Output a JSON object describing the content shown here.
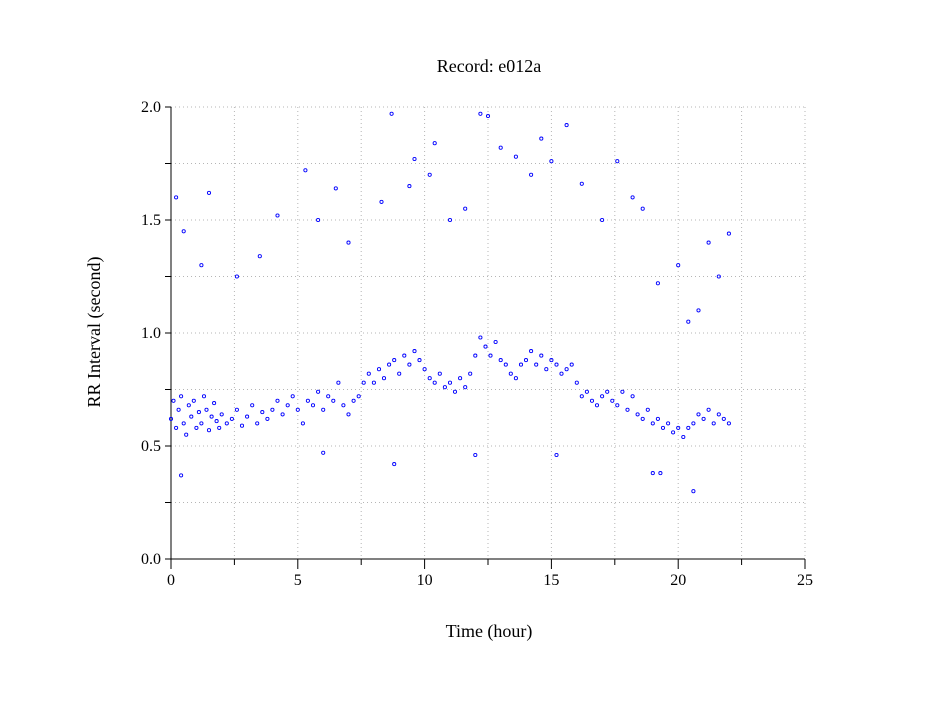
{
  "chart_data": {
    "type": "scatter",
    "title": "Record:  e012a",
    "xlabel": "Time (hour)",
    "ylabel": "RR Interval (second)",
    "xlim": [
      0,
      25
    ],
    "ylim": [
      0.0,
      2.0
    ],
    "x_ticks": [
      0,
      5,
      10,
      15,
      20,
      25
    ],
    "x_tick_labels": [
      "0",
      "5",
      "10",
      "15",
      "20",
      "25"
    ],
    "y_ticks": [
      0.0,
      0.5,
      1.0,
      1.5,
      2.0
    ],
    "y_tick_labels": [
      "0.0",
      "0.5",
      "1.0",
      "1.5",
      "2.0"
    ],
    "grid": true,
    "marker": "open-circle",
    "color": "#0000ff",
    "series": [
      {
        "values": [
          [
            0.0,
            0.62
          ],
          [
            0.1,
            0.7
          ],
          [
            0.2,
            0.58
          ],
          [
            0.3,
            0.66
          ],
          [
            0.4,
            0.72
          ],
          [
            0.5,
            0.6
          ],
          [
            0.6,
            0.55
          ],
          [
            0.7,
            0.68
          ],
          [
            0.8,
            0.63
          ],
          [
            0.9,
            0.7
          ],
          [
            1.0,
            0.58
          ],
          [
            1.1,
            0.65
          ],
          [
            1.2,
            0.6
          ],
          [
            1.3,
            0.72
          ],
          [
            1.4,
            0.66
          ],
          [
            1.5,
            0.57
          ],
          [
            1.6,
            0.63
          ],
          [
            1.7,
            0.69
          ],
          [
            1.8,
            0.61
          ],
          [
            1.9,
            0.58
          ],
          [
            2.0,
            0.64
          ],
          [
            2.2,
            0.6
          ],
          [
            2.4,
            0.62
          ],
          [
            2.6,
            0.66
          ],
          [
            2.8,
            0.59
          ],
          [
            3.0,
            0.63
          ],
          [
            3.2,
            0.68
          ],
          [
            3.4,
            0.6
          ],
          [
            3.6,
            0.65
          ],
          [
            3.8,
            0.62
          ],
          [
            4.0,
            0.66
          ],
          [
            4.2,
            0.7
          ],
          [
            4.4,
            0.64
          ],
          [
            4.6,
            0.68
          ],
          [
            4.8,
            0.72
          ],
          [
            5.0,
            0.66
          ],
          [
            5.2,
            0.6
          ],
          [
            5.4,
            0.7
          ],
          [
            5.6,
            0.68
          ],
          [
            5.8,
            0.74
          ],
          [
            6.0,
            0.66
          ],
          [
            6.2,
            0.72
          ],
          [
            6.4,
            0.7
          ],
          [
            6.6,
            0.78
          ],
          [
            6.8,
            0.68
          ],
          [
            7.0,
            0.64
          ],
          [
            7.2,
            0.7
          ],
          [
            7.4,
            0.72
          ],
          [
            7.6,
            0.78
          ],
          [
            7.8,
            0.82
          ],
          [
            8.0,
            0.78
          ],
          [
            8.2,
            0.84
          ],
          [
            8.4,
            0.8
          ],
          [
            8.6,
            0.86
          ],
          [
            8.8,
            0.88
          ],
          [
            9.0,
            0.82
          ],
          [
            9.2,
            0.9
          ],
          [
            9.4,
            0.86
          ],
          [
            9.6,
            0.92
          ],
          [
            9.8,
            0.88
          ],
          [
            10.0,
            0.84
          ],
          [
            10.2,
            0.8
          ],
          [
            10.4,
            0.78
          ],
          [
            10.6,
            0.82
          ],
          [
            10.8,
            0.76
          ],
          [
            11.0,
            0.78
          ],
          [
            11.2,
            0.74
          ],
          [
            11.4,
            0.8
          ],
          [
            11.6,
            0.76
          ],
          [
            11.8,
            0.82
          ],
          [
            12.0,
            0.9
          ],
          [
            12.2,
            0.98
          ],
          [
            12.4,
            0.94
          ],
          [
            12.6,
            0.9
          ],
          [
            12.8,
            0.96
          ],
          [
            13.0,
            0.88
          ],
          [
            13.2,
            0.86
          ],
          [
            13.4,
            0.82
          ],
          [
            13.6,
            0.8
          ],
          [
            13.8,
            0.86
          ],
          [
            14.0,
            0.88
          ],
          [
            14.2,
            0.92
          ],
          [
            14.4,
            0.86
          ],
          [
            14.6,
            0.9
          ],
          [
            14.8,
            0.84
          ],
          [
            15.0,
            0.88
          ],
          [
            15.2,
            0.86
          ],
          [
            15.4,
            0.82
          ],
          [
            15.6,
            0.84
          ],
          [
            15.8,
            0.86
          ],
          [
            16.0,
            0.78
          ],
          [
            16.2,
            0.72
          ],
          [
            16.4,
            0.74
          ],
          [
            16.6,
            0.7
          ],
          [
            16.8,
            0.68
          ],
          [
            17.0,
            0.72
          ],
          [
            17.2,
            0.74
          ],
          [
            17.4,
            0.7
          ],
          [
            17.6,
            0.68
          ],
          [
            17.8,
            0.74
          ],
          [
            18.0,
            0.66
          ],
          [
            18.2,
            0.72
          ],
          [
            18.4,
            0.64
          ],
          [
            18.6,
            0.62
          ],
          [
            18.8,
            0.66
          ],
          [
            19.0,
            0.6
          ],
          [
            19.2,
            0.62
          ],
          [
            19.4,
            0.58
          ],
          [
            19.6,
            0.6
          ],
          [
            19.8,
            0.56
          ],
          [
            20.0,
            0.58
          ],
          [
            20.2,
            0.54
          ],
          [
            20.4,
            0.58
          ],
          [
            20.6,
            0.6
          ],
          [
            20.8,
            0.64
          ],
          [
            21.0,
            0.62
          ],
          [
            21.2,
            0.66
          ],
          [
            21.4,
            0.6
          ],
          [
            21.6,
            0.64
          ],
          [
            21.8,
            0.62
          ],
          [
            22.0,
            0.6
          ],
          [
            0.2,
            1.6
          ],
          [
            0.5,
            1.45
          ],
          [
            1.2,
            1.3
          ],
          [
            1.5,
            1.62
          ],
          [
            2.6,
            1.25
          ],
          [
            3.5,
            1.34
          ],
          [
            4.2,
            1.52
          ],
          [
            5.3,
            1.72
          ],
          [
            5.8,
            1.5
          ],
          [
            6.5,
            1.64
          ],
          [
            7.0,
            1.4
          ],
          [
            8.3,
            1.58
          ],
          [
            8.7,
            1.97
          ],
          [
            9.4,
            1.65
          ],
          [
            9.6,
            1.77
          ],
          [
            10.2,
            1.7
          ],
          [
            10.4,
            1.84
          ],
          [
            11.0,
            1.5
          ],
          [
            11.6,
            1.55
          ],
          [
            12.2,
            1.97
          ],
          [
            12.5,
            1.96
          ],
          [
            13.0,
            1.82
          ],
          [
            13.6,
            1.78
          ],
          [
            14.2,
            1.7
          ],
          [
            14.6,
            1.86
          ],
          [
            15.0,
            1.76
          ],
          [
            15.6,
            1.92
          ],
          [
            16.2,
            1.66
          ],
          [
            17.0,
            1.5
          ],
          [
            17.6,
            1.76
          ],
          [
            18.2,
            1.6
          ],
          [
            18.6,
            1.55
          ],
          [
            19.2,
            1.22
          ],
          [
            20.0,
            1.3
          ],
          [
            20.4,
            1.05
          ],
          [
            20.8,
            1.1
          ],
          [
            21.2,
            1.4
          ],
          [
            21.6,
            1.25
          ],
          [
            22.0,
            1.44
          ],
          [
            0.4,
            0.37
          ],
          [
            6.0,
            0.47
          ],
          [
            8.8,
            0.42
          ],
          [
            19.0,
            0.38
          ],
          [
            19.3,
            0.38
          ],
          [
            20.6,
            0.3
          ],
          [
            12.0,
            0.46
          ],
          [
            15.2,
            0.46
          ]
        ]
      }
    ]
  }
}
